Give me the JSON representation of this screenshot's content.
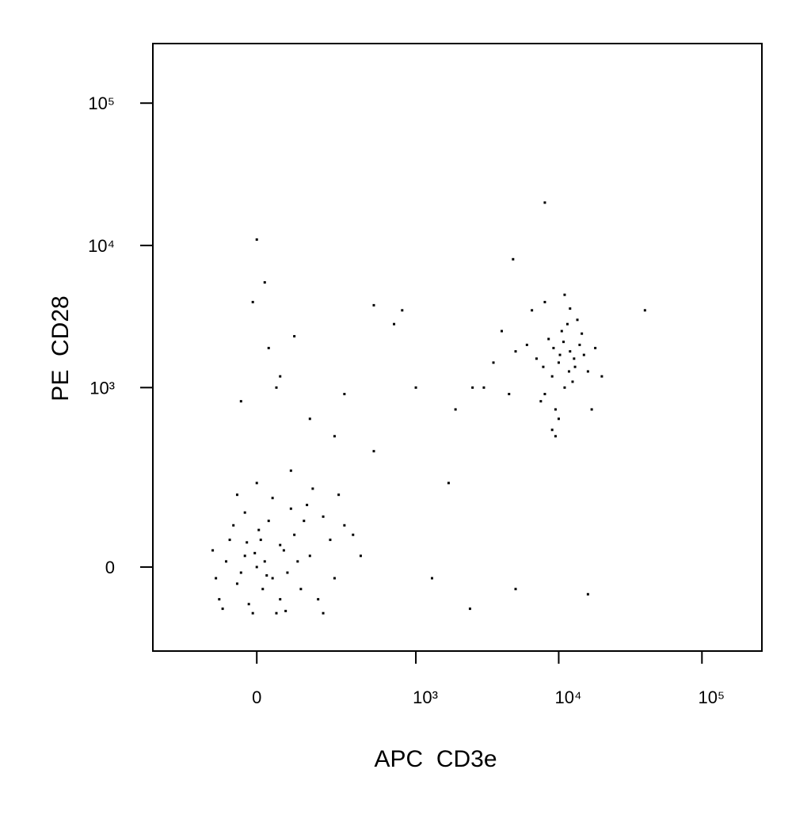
{
  "chart_data": {
    "type": "scatter",
    "xlabel": "APC  CD3e",
    "ylabel": "PE  CD28",
    "xscale": "biexponential",
    "yscale": "biexponential",
    "xlim": [
      -400,
      262144
    ],
    "ylim": [
      -200,
      262144
    ],
    "xticks": [
      0,
      {
        "value": 1000,
        "label": "10³"
      },
      {
        "value": 10000,
        "label": "10⁴"
      },
      {
        "value": 100000,
        "label": "10⁵"
      }
    ],
    "yticks": [
      0,
      {
        "value": 1000,
        "label": "10³"
      },
      {
        "value": 10000,
        "label": "10⁴"
      },
      {
        "value": 100000,
        "label": "10⁵"
      }
    ],
    "color": "#000000",
    "x": [
      0,
      20,
      -30,
      40,
      10,
      -50,
      60,
      80,
      -80,
      30,
      -20,
      100,
      120,
      -100,
      150,
      -60,
      50,
      200,
      -120,
      180,
      90,
      -10,
      230,
      70,
      -40,
      15,
      5,
      -70,
      130,
      110,
      -90,
      250,
      300,
      -30,
      60,
      140,
      40,
      -5,
      25,
      -25,
      200,
      350,
      160,
      -110,
      75,
      0,
      90,
      -50,
      270,
      400,
      10000,
      12000,
      9000,
      11000,
      13000,
      8000,
      14000,
      10500,
      9500,
      7000,
      15000,
      12500,
      8500,
      11500,
      16000,
      6000,
      5000,
      4000,
      3500,
      9000,
      10000,
      7500,
      13500,
      18000,
      20000,
      4500,
      6500,
      11000,
      8000,
      3000,
      9500,
      12000,
      17000,
      14500,
      10200,
      11800,
      9200,
      10800,
      7800,
      12800,
      50,
      0,
      20,
      -10,
      500,
      800,
      700,
      100,
      30,
      1900,
      2500,
      8000,
      4800,
      40000,
      16000,
      5000,
      1300,
      2400,
      1700,
      500,
      150,
      250,
      -40,
      60,
      300,
      1000
    ],
    "values": [
      0,
      10,
      20,
      -20,
      50,
      -30,
      40,
      -10,
      10,
      90,
      -70,
      60,
      -40,
      -60,
      20,
      80,
      -90,
      100,
      30,
      -60,
      120,
      -90,
      50,
      30,
      -10,
      -40,
      70,
      50,
      90,
      10,
      -80,
      -20,
      80,
      110,
      -60,
      130,
      150,
      25,
      -15,
      45,
      -90,
      60,
      180,
      -20,
      -85,
      200,
      250,
      160,
      160,
      20,
      1500,
      1800,
      1200,
      1000,
      1400,
      900,
      2000,
      2500,
      700,
      1600,
      1700,
      1100,
      2200,
      2800,
      1300,
      2000,
      1800,
      2500,
      1500,
      500,
      600,
      800,
      3000,
      1900,
      1200,
      900,
      3500,
      4500,
      4000,
      1000,
      450,
      3600,
      700,
      2400,
      1700,
      1300,
      1900,
      2100,
      1400,
      1600,
      1000,
      11000,
      5500,
      4000,
      3800,
      3500,
      2800,
      2300,
      1900,
      700,
      1000,
      20000,
      8000,
      3500,
      -50,
      -40,
      -20,
      -80,
      200,
      350,
      600,
      450,
      800,
      1200,
      900,
      1000
    ]
  }
}
